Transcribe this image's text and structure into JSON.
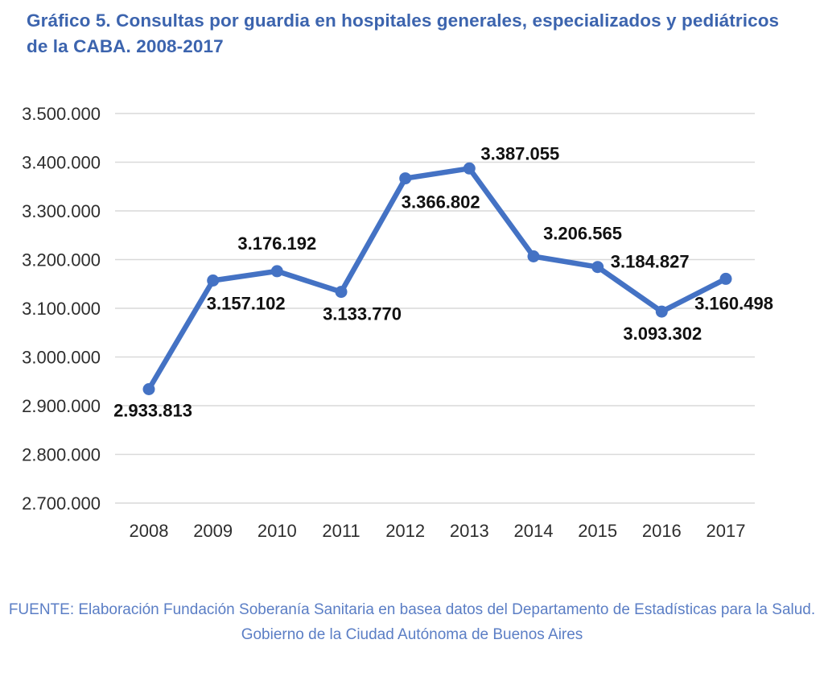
{
  "header": {
    "title": "Gráfico 5. Consultas por guardia en hospitales generales, especializados y pediátricos de la CABA. 2008-2017"
  },
  "footer": {
    "line1": "FUENTE: Elaboración Fundación Soberanía Sanitaria en basea  datos del Departamento de Estadísticas para la Salud.",
    "line2": "Gobierno de la Ciudad Autónoma de Buenos Aires"
  },
  "colors": {
    "title_text": "#3C64AE",
    "footer_text": "#5B7EC5",
    "line": "#4472C4",
    "marker": "#4472C4",
    "gridline": "#D9D9D9",
    "tick_text": "#2E2E2E",
    "data_label_text": "#111111"
  },
  "chart_data": {
    "type": "line",
    "title": "Consultas por guardia en hospitales generales, especializados y pediátricos de la CABA. 2008-2017",
    "categories": [
      "2008",
      "2009",
      "2010",
      "2011",
      "2012",
      "2013",
      "2014",
      "2015",
      "2016",
      "2017"
    ],
    "series": [
      {
        "name": "Consultas por guardia",
        "values": [
          2933813,
          3157102,
          3176192,
          3133770,
          3366802,
          3387055,
          3206565,
          3184827,
          3093302,
          3160498
        ],
        "point_labels": [
          "2.933.813",
          "3.157.102",
          "3.176.192",
          "3.133.770",
          "3.366.802",
          "3.387.055",
          "3.206.565",
          "3.184.827",
          "3.093.302",
          "3.160.498"
        ]
      }
    ],
    "xlabel": "",
    "ylabel": "",
    "ylim": [
      2700000,
      3500000
    ],
    "ytick_step": 100000,
    "ytick_labels_top_to_bottom": [
      "3.500.000",
      "3.400.000",
      "3.300.000",
      "3.200.000",
      "3.100.000",
      "3.000.000",
      "2.900.000",
      "2.800.000",
      "2.700.000"
    ],
    "grid": true,
    "legend_position": "none",
    "marker_style": "circle"
  }
}
